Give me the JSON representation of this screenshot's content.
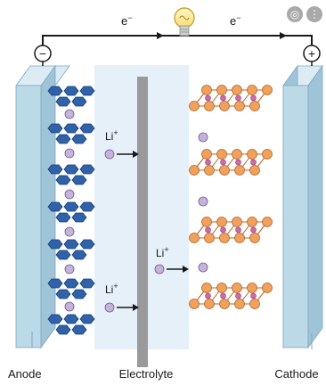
{
  "labels": {
    "anode": "Anode",
    "electrolyte": "Electrolyte",
    "cathode": "Cathode",
    "electron": "e",
    "electron_sup": "−",
    "ion": "Li",
    "ion_sup": "+",
    "minus": "−",
    "plus": "+"
  },
  "overlay_controls": [
    {
      "name": "lens-search-icon",
      "glyph": "◎"
    },
    {
      "name": "more-options-icon",
      "glyph": "⋮"
    }
  ],
  "colors": {
    "electrode": "#bcd9e8",
    "electrolyte": "#e6f0f9",
    "separator": "#9a9a9a",
    "graphite": "#2f62a8",
    "lithium_ion": "#c6b3dc",
    "cathode_atom": "#f0a15c",
    "cathode_small_atom": "#cf6aa8"
  }
}
